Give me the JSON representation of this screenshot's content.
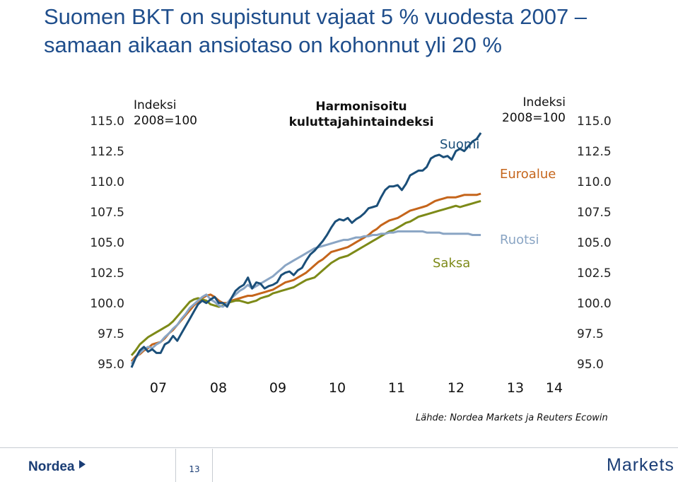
{
  "title": {
    "line1": "Suomen BKT on supistunut vajaat 5 % vuodesta 2007 –",
    "line2": "samaan aikaan ansiotaso on kohonnut yli 20 %"
  },
  "notes": {
    "left_index_l1": "Indeksi",
    "left_index_l2": "2008=100",
    "center_l1": "Harmonisoitu",
    "center_l2": "kuluttajahintaindeksi",
    "right_index_l1": "Indeksi",
    "right_index_l2": "2008=100"
  },
  "source": "Lähde: Nordea Markets ja Reuters Ecowin",
  "footer": {
    "logo": "Nordea",
    "page": "13",
    "brand": "Markets"
  },
  "colors": {
    "Suomi": "#1b4f79",
    "Euroalue": "#c5651b",
    "Saksa": "#7d8a18",
    "Ruotsi": "#8aa5c4",
    "title": "#1f4e8c",
    "brand": "#1a3d75"
  },
  "chart_data": {
    "type": "line",
    "title": "Harmonisoitu kuluttajahintaindeksi",
    "xlabel": "",
    "ylabel": "",
    "x_tick_labels": [
      "07",
      "08",
      "09",
      "10",
      "11",
      "12",
      "13",
      "14"
    ],
    "x_range": [
      2006.0,
      2014.5
    ],
    "ylim": [
      95.0,
      115.0
    ],
    "y_ticks": [
      "115.0",
      "112.5",
      "110.0",
      "107.5",
      "105.0",
      "102.5",
      "100.0",
      "97.5",
      "95.0"
    ],
    "legend": "inline labels",
    "series_start": 2006.0,
    "series_step": 0.083333,
    "series": [
      {
        "name": "Suomi",
        "values": [
          95.0,
          95.8,
          96.4,
          96.7,
          96.3,
          96.5,
          96.2,
          96.2,
          96.9,
          97.1,
          97.6,
          97.2,
          97.8,
          98.4,
          99.0,
          99.6,
          100.2,
          100.5,
          100.3,
          100.6,
          100.8,
          100.3,
          100.3,
          100.0,
          100.7,
          101.3,
          101.6,
          101.8,
          102.4,
          101.5,
          102.0,
          101.9,
          101.5,
          101.7,
          101.8,
          102.0,
          102.6,
          102.8,
          102.9,
          102.6,
          103.0,
          103.2,
          103.8,
          104.3,
          104.6,
          105.0,
          105.4,
          105.9,
          106.5,
          107.0,
          107.2,
          107.1,
          107.3,
          106.9,
          107.2,
          107.4,
          107.7,
          108.1,
          108.2,
          108.3,
          109.0,
          109.6,
          109.9,
          109.9,
          110.0,
          109.6,
          110.1,
          110.8,
          111.0,
          111.2,
          111.2,
          111.5,
          112.2,
          112.4,
          112.5,
          112.3,
          112.4,
          112.1,
          112.8,
          113.0,
          112.8,
          113.2,
          113.6,
          113.8,
          114.3
        ]
      },
      {
        "name": "Euroalue",
        "values": [
          95.5,
          95.9,
          96.1,
          96.4,
          96.6,
          96.9,
          97.0,
          97.1,
          97.4,
          97.8,
          98.1,
          98.5,
          98.9,
          99.3,
          99.7,
          100.1,
          100.4,
          100.7,
          100.9,
          101.0,
          100.8,
          100.5,
          100.3,
          100.3,
          100.5,
          100.6,
          100.7,
          100.8,
          100.9,
          100.9,
          101.0,
          101.1,
          101.2,
          101.3,
          101.4,
          101.6,
          101.8,
          102.0,
          102.1,
          102.2,
          102.4,
          102.6,
          102.8,
          103.1,
          103.4,
          103.7,
          103.9,
          104.2,
          104.5,
          104.6,
          104.7,
          104.8,
          104.9,
          105.1,
          105.3,
          105.5,
          105.7,
          105.9,
          106.2,
          106.4,
          106.7,
          106.9,
          107.1,
          107.2,
          107.3,
          107.5,
          107.7,
          107.9,
          108.0,
          108.1,
          108.2,
          108.3,
          108.5,
          108.7,
          108.8,
          108.9,
          109.0,
          109.0,
          109.0,
          109.1,
          109.2,
          109.2,
          109.2,
          109.2,
          109.3
        ]
      },
      {
        "name": "Saksa",
        "values": [
          96.0,
          96.4,
          96.9,
          97.2,
          97.5,
          97.7,
          97.9,
          98.1,
          98.3,
          98.5,
          98.8,
          99.2,
          99.6,
          100.0,
          100.4,
          100.6,
          100.7,
          100.6,
          100.5,
          100.2,
          100.1,
          100.0,
          100.1,
          100.3,
          100.4,
          100.5,
          100.5,
          100.4,
          100.3,
          100.4,
          100.5,
          100.7,
          100.8,
          100.9,
          101.1,
          101.2,
          101.3,
          101.4,
          101.5,
          101.6,
          101.8,
          102.0,
          102.2,
          102.3,
          102.4,
          102.7,
          103.0,
          103.3,
          103.6,
          103.8,
          104.0,
          104.1,
          104.2,
          104.4,
          104.6,
          104.8,
          105.0,
          105.2,
          105.4,
          105.6,
          105.8,
          106.0,
          106.2,
          106.3,
          106.5,
          106.7,
          106.9,
          107.0,
          107.2,
          107.4,
          107.5,
          107.6,
          107.7,
          107.8,
          107.9,
          108.0,
          108.1,
          108.2,
          108.3,
          108.2,
          108.3,
          108.4,
          108.5,
          108.6,
          108.7
        ]
      },
      {
        "name": "Ruotsi",
        "values": [
          95.3,
          95.8,
          96.2,
          96.5,
          96.7,
          96.6,
          96.9,
          97.1,
          97.5,
          97.8,
          98.2,
          98.5,
          99.0,
          99.4,
          99.9,
          100.2,
          100.5,
          100.8,
          101.0,
          100.6,
          100.4,
          100.1,
          100.0,
          100.3,
          100.7,
          101.0,
          101.3,
          101.5,
          101.8,
          101.5,
          101.7,
          101.9,
          102.1,
          102.3,
          102.5,
          102.8,
          103.1,
          103.4,
          103.6,
          103.8,
          104.0,
          104.2,
          104.4,
          104.6,
          104.8,
          104.9,
          105.0,
          105.1,
          105.2,
          105.3,
          105.4,
          105.5,
          105.5,
          105.6,
          105.7,
          105.7,
          105.8,
          105.8,
          105.9,
          105.9,
          106.0,
          106.0,
          106.1,
          106.1,
          106.2,
          106.2,
          106.2,
          106.2,
          106.2,
          106.2,
          106.2,
          106.1,
          106.1,
          106.1,
          106.1,
          106.0,
          106.0,
          106.0,
          106.0,
          106.0,
          106.0,
          106.0,
          105.9,
          105.9,
          105.9
        ]
      }
    ]
  }
}
